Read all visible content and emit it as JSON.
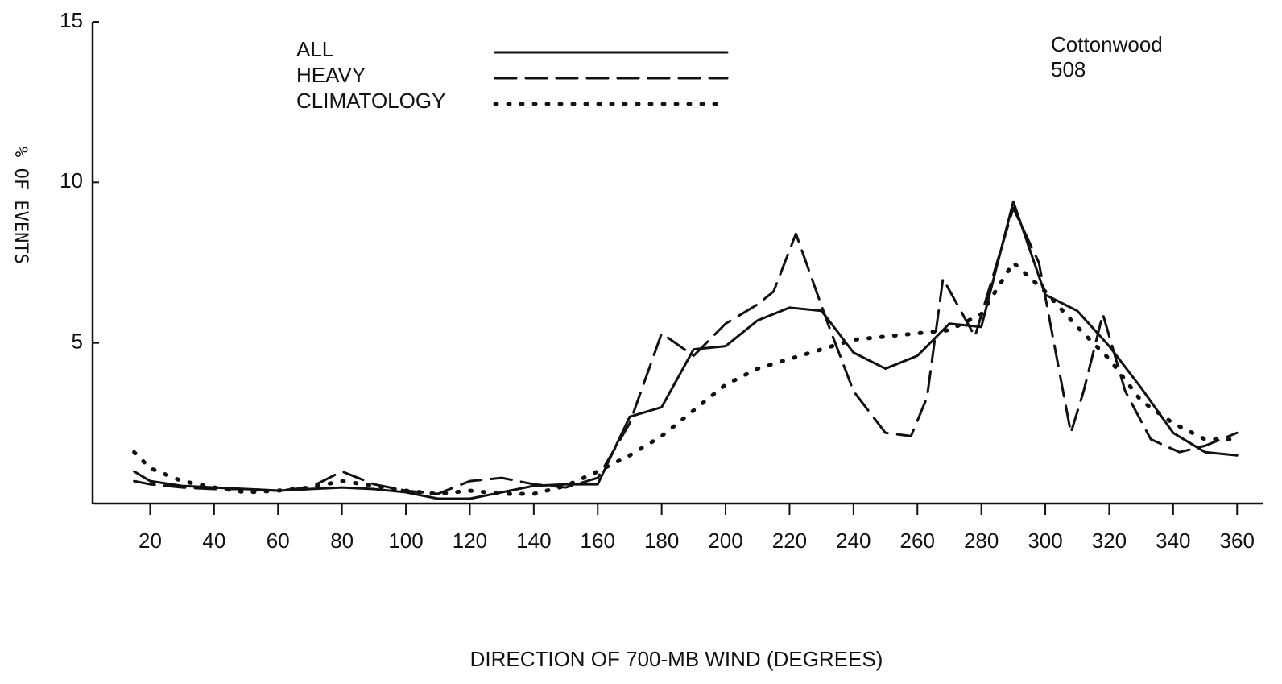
{
  "chart_data": {
    "type": "line",
    "xlabel": "DIRECTION OF 700-MB WIND  (DEGREES)",
    "ylabel": "% OF EVENTS",
    "annotations": [
      "Cottonwood",
      "508"
    ],
    "xlim": [
      2,
      368
    ],
    "ylim": [
      0,
      15
    ],
    "xticks": [
      20,
      40,
      60,
      80,
      100,
      120,
      140,
      160,
      180,
      200,
      220,
      240,
      260,
      280,
      300,
      320,
      340,
      360
    ],
    "yticks": [
      5,
      10,
      15
    ],
    "series": [
      {
        "name": "ALL",
        "color": "#111111",
        "style": "solid",
        "x": [
          15,
          20,
          30,
          40,
          50,
          60,
          70,
          80,
          90,
          100,
          110,
          120,
          130,
          140,
          150,
          160,
          170,
          180,
          190,
          200,
          210,
          220,
          230,
          240,
          250,
          260,
          270,
          280,
          290,
          300,
          310,
          320,
          330,
          340,
          350,
          360
        ],
        "values": [
          1.0,
          0.7,
          0.55,
          0.5,
          0.45,
          0.4,
          0.45,
          0.5,
          0.45,
          0.35,
          0.15,
          0.15,
          0.35,
          0.55,
          0.6,
          0.6,
          2.7,
          3.0,
          4.8,
          4.9,
          5.7,
          6.1,
          6.0,
          4.7,
          4.2,
          4.6,
          5.6,
          5.5,
          9.4,
          6.5,
          6.0,
          4.9,
          3.6,
          2.2,
          1.6,
          1.5
        ]
      },
      {
        "name": "HEAVY",
        "color": "#111111",
        "style": "dashed",
        "x": [
          15,
          20,
          30,
          40,
          50,
          60,
          70,
          80,
          90,
          100,
          110,
          120,
          130,
          140,
          150,
          160,
          170,
          180,
          190,
          200,
          210,
          215,
          222,
          232,
          240,
          250,
          258,
          263,
          268,
          278,
          290,
          298,
          308,
          312,
          318,
          325,
          333,
          342,
          350,
          360
        ],
        "values": [
          0.7,
          0.6,
          0.5,
          0.45,
          0.45,
          0.4,
          0.5,
          1.0,
          0.6,
          0.4,
          0.3,
          0.7,
          0.8,
          0.6,
          0.5,
          0.8,
          2.5,
          5.3,
          4.6,
          5.6,
          6.2,
          6.6,
          8.4,
          5.6,
          3.5,
          2.2,
          2.1,
          3.3,
          7.0,
          5.2,
          9.2,
          7.5,
          2.2,
          3.5,
          5.9,
          3.5,
          2.0,
          1.6,
          1.8,
          2.2
        ]
      },
      {
        "name": "CLIMATOLOGY",
        "color": "#111111",
        "style": "dotted",
        "x": [
          15,
          20,
          30,
          40,
          50,
          60,
          70,
          80,
          90,
          100,
          110,
          120,
          130,
          140,
          150,
          160,
          170,
          180,
          190,
          200,
          210,
          220,
          230,
          240,
          250,
          260,
          270,
          280,
          290,
          300,
          310,
          320,
          330,
          340,
          350,
          360
        ],
        "values": [
          1.6,
          1.1,
          0.7,
          0.5,
          0.35,
          0.4,
          0.5,
          0.7,
          0.55,
          0.4,
          0.3,
          0.4,
          0.3,
          0.3,
          0.55,
          1.0,
          1.5,
          2.1,
          2.9,
          3.7,
          4.2,
          4.5,
          4.8,
          5.1,
          5.2,
          5.3,
          5.4,
          5.9,
          7.5,
          6.6,
          5.5,
          4.5,
          3.2,
          2.5,
          2.0,
          2.0
        ]
      }
    ]
  }
}
